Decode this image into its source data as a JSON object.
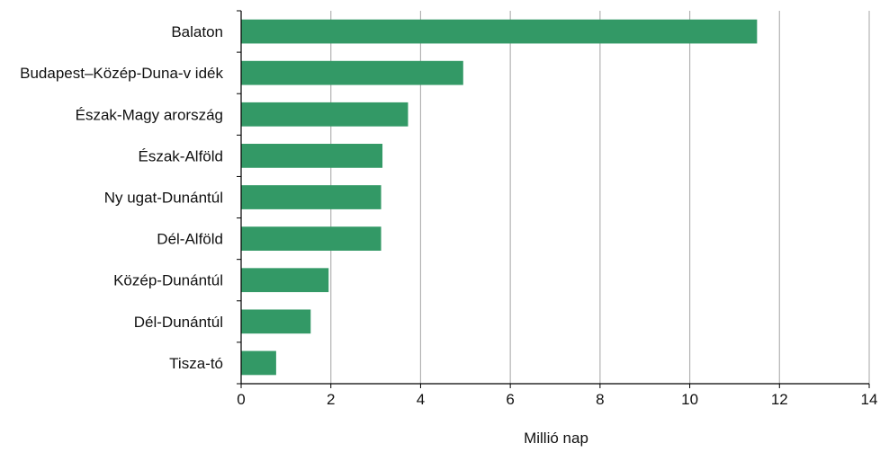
{
  "chart_data": {
    "type": "bar",
    "orientation": "horizontal",
    "categories": [
      "Balaton",
      "Budapest–Közép-Duna-v idék",
      "Észak-Magy arország",
      "Észak-Alföld",
      "Ny ugat-Dunántúl",
      "Dél-Alföld",
      "Közép-Dunántúl",
      "Dél-Dunántúl",
      "Tisza-tó"
    ],
    "values": [
      11.5,
      4.95,
      3.72,
      3.15,
      3.12,
      3.12,
      1.95,
      1.55,
      0.78
    ],
    "xlabel": "Millió nap",
    "ylabel": "",
    "xlim": [
      0,
      14
    ],
    "x_ticks": [
      0,
      2,
      4,
      6,
      8,
      10,
      12,
      14
    ],
    "grid": "vertical",
    "legend": "none",
    "bar_color": "#339966",
    "grid_color": "#b3b3b3",
    "axis_color": "#000000"
  }
}
